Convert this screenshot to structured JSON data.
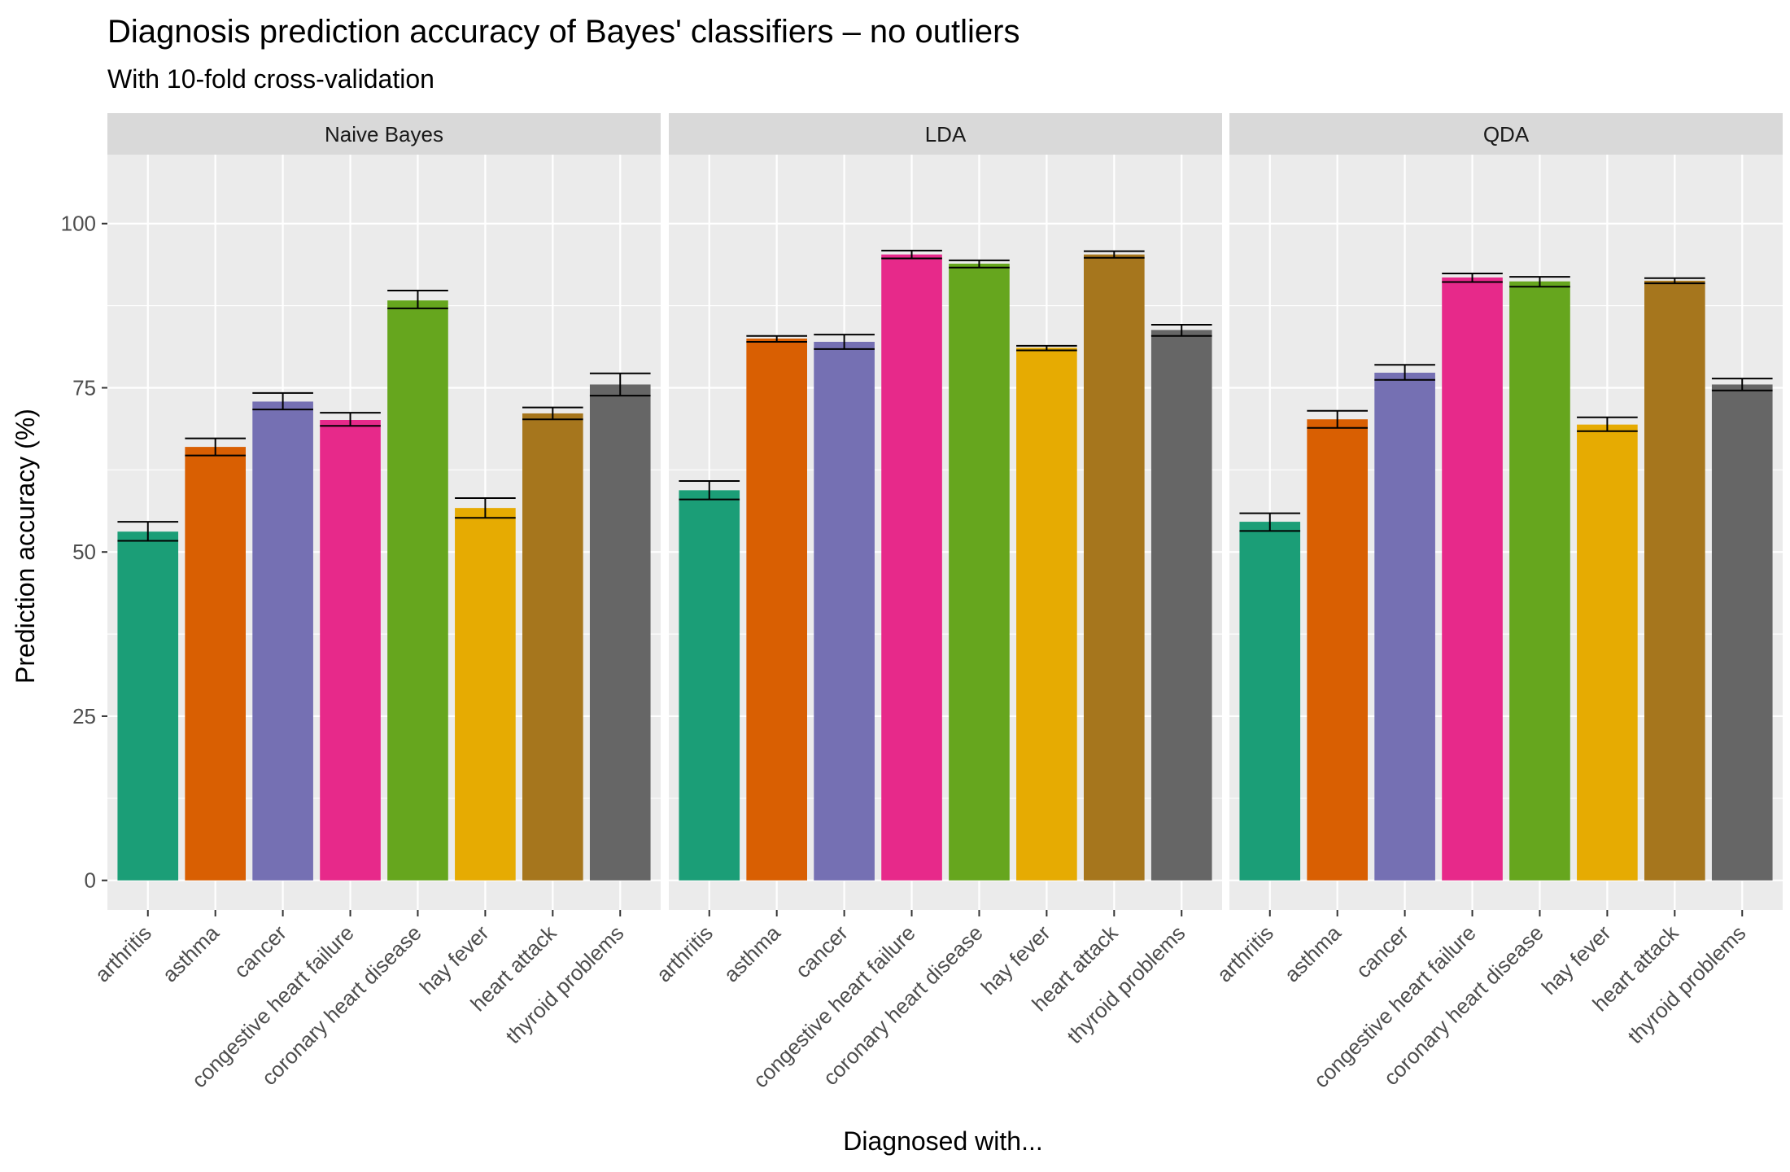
{
  "chart_data": {
    "type": "bar",
    "title": "Diagnosis prediction accuracy of Bayes' classifiers – no outliers",
    "subtitle": "With 10-fold cross-validation",
    "xlabel": "Diagnosed with...",
    "ylabel": "Prediction accuracy (%)",
    "ylim": [
      -4.5,
      110.5
    ],
    "yticks": [
      0,
      25,
      50,
      75,
      100
    ],
    "grid": true,
    "legend": "none",
    "categories": [
      "arthritis",
      "asthma",
      "cancer",
      "congestive heart failure",
      "coronary heart disease",
      "hay fever",
      "heart attack",
      "thyroid problems"
    ],
    "colors": [
      "#1B9E77",
      "#D95F02",
      "#7570B3",
      "#E7298A",
      "#66A61E",
      "#E6AB02",
      "#A6761D",
      "#666666"
    ],
    "panels": [
      {
        "name": "Naive Bayes",
        "values": [
          53.1,
          66.0,
          72.9,
          70.1,
          88.3,
          56.7,
          71.1,
          75.5
        ],
        "error_low": [
          51.7,
          64.7,
          71.7,
          69.2,
          87.1,
          55.2,
          70.2,
          73.8
        ],
        "error_high": [
          54.6,
          67.3,
          74.2,
          71.2,
          89.8,
          58.2,
          72.0,
          77.2
        ]
      },
      {
        "name": "LDA",
        "values": [
          59.4,
          82.5,
          82.0,
          95.3,
          93.9,
          81.1,
          95.3,
          83.8
        ],
        "error_low": [
          58.0,
          82.0,
          80.9,
          94.7,
          93.3,
          80.7,
          94.8,
          82.9
        ],
        "error_high": [
          60.8,
          82.9,
          83.1,
          95.9,
          94.4,
          81.4,
          95.8,
          84.6
        ]
      },
      {
        "name": "QDA",
        "values": [
          54.6,
          70.2,
          77.3,
          91.8,
          91.2,
          69.4,
          91.3,
          75.5
        ],
        "error_low": [
          53.2,
          68.9,
          76.2,
          91.1,
          90.4,
          68.4,
          90.9,
          74.6
        ],
        "error_high": [
          55.9,
          71.5,
          78.5,
          92.4,
          91.9,
          70.5,
          91.7,
          76.4
        ]
      }
    ]
  }
}
